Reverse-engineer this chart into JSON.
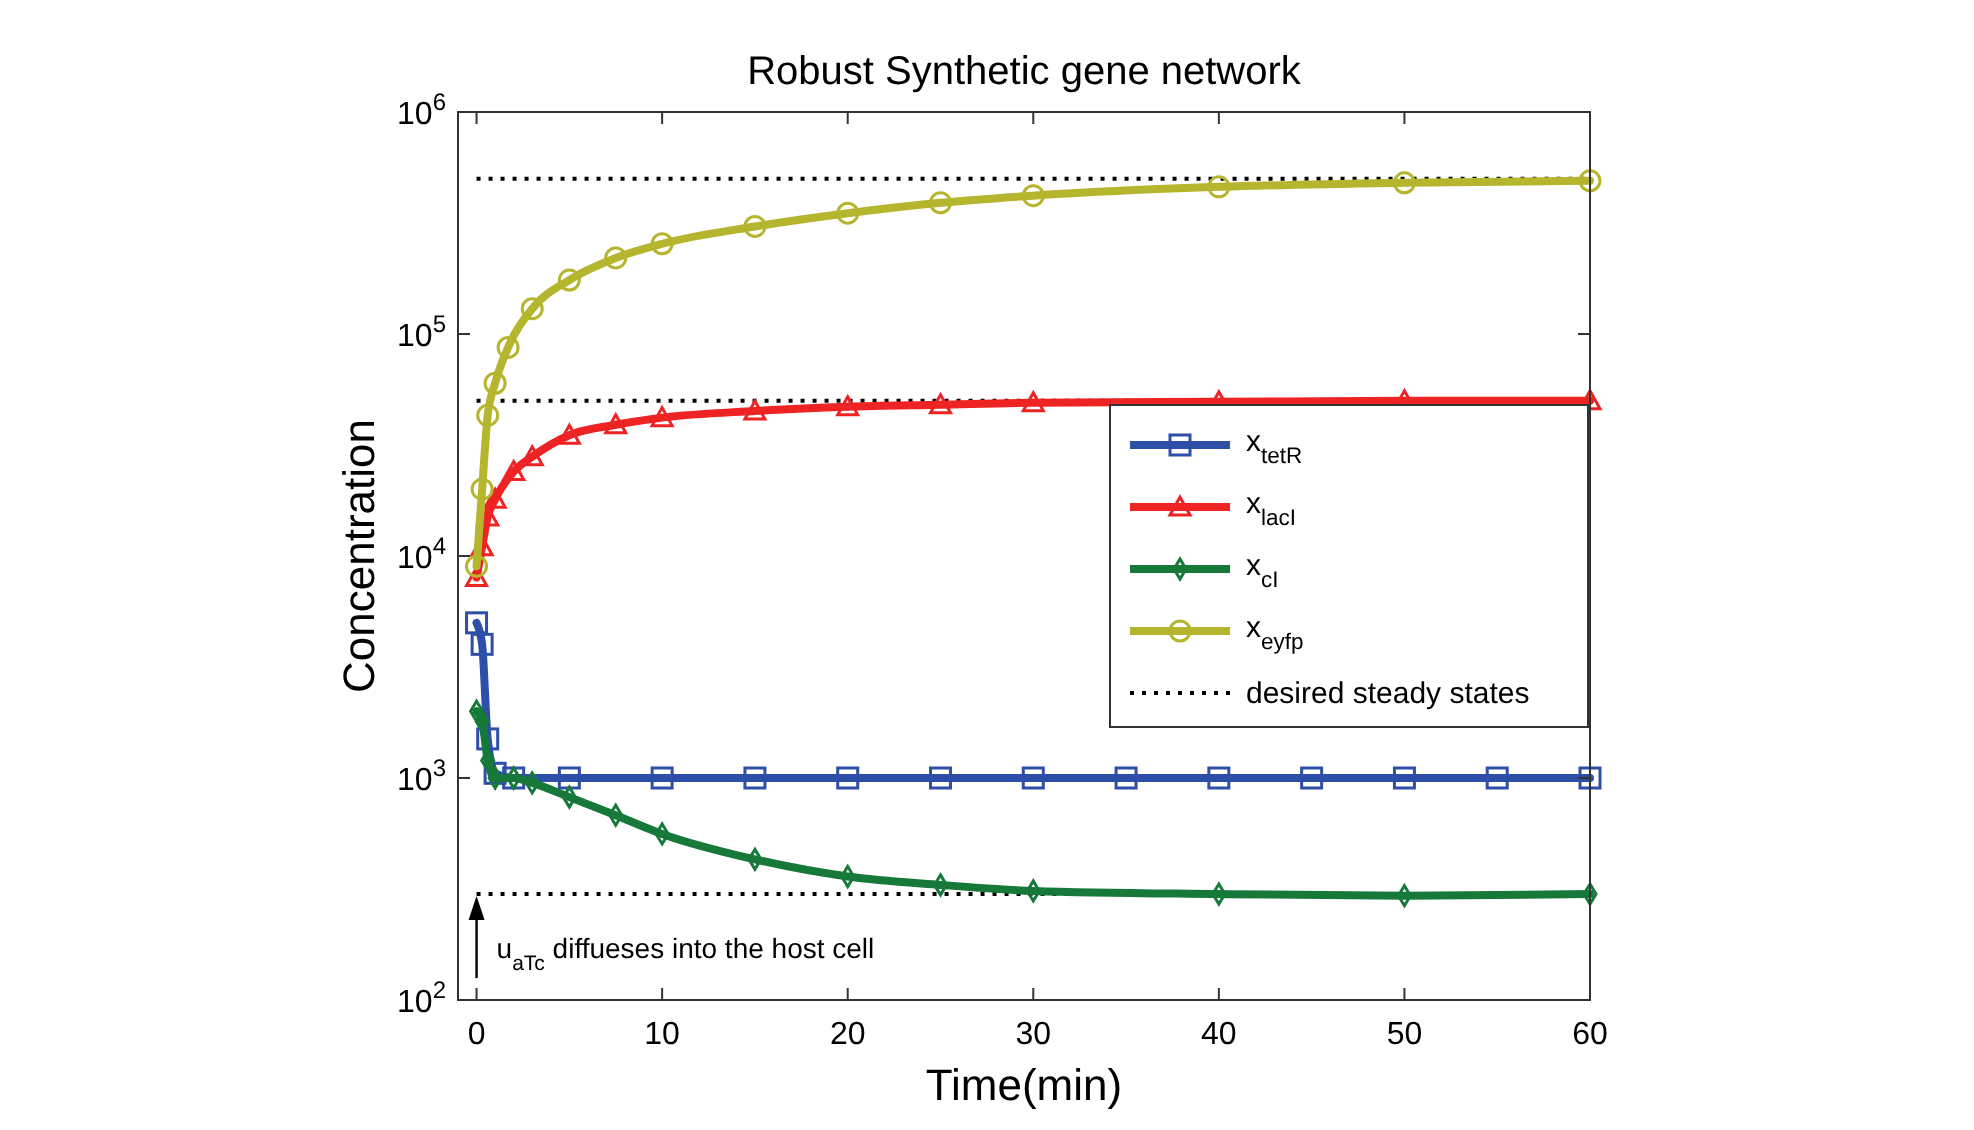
{
  "chart_data": {
    "type": "line",
    "title": "Robust Synthetic gene network",
    "xlabel": "Time(min)",
    "ylabel": "Concentration",
    "log": "y",
    "xlim": [
      -1,
      60
    ],
    "xticks": [
      0,
      10,
      20,
      30,
      40,
      50,
      60
    ],
    "ylim": [
      100,
      1000000
    ],
    "yticks": [
      {
        "value": 100,
        "label": "10$^{2}$"
      },
      {
        "value": 1000,
        "label": "10$^{3}$"
      },
      {
        "value": 10000,
        "label": "10$^{4}$"
      },
      {
        "value": 100000,
        "label": "10$^{5}$"
      },
      {
        "value": 1000000,
        "label": "10$^{6}$"
      }
    ],
    "grid": false,
    "legend": "right",
    "line_style": "solid",
    "series": [
      {
        "name": "x$_{tetR}$",
        "color": "#2d4fa8",
        "marker": "square",
        "x": [
          0,
          0.3,
          0.6,
          1,
          2,
          5,
          10,
          15,
          20,
          25,
          30,
          35,
          40,
          45,
          50,
          55,
          60
        ],
        "values": [
          5000,
          4000,
          1500,
          1050,
          1000,
          1000,
          1000,
          1000,
          1000,
          1000,
          1000,
          1000,
          1000,
          1000,
          1000,
          1000,
          1000
        ]
      },
      {
        "name": "x$_{lacI}$",
        "color": "#ee2324",
        "marker": "triangle",
        "x": [
          0,
          0.3,
          0.6,
          1,
          2,
          3,
          5,
          7.5,
          10,
          15,
          20,
          25,
          30,
          40,
          50,
          60
        ],
        "values": [
          8000,
          11000,
          15000,
          18000,
          24000,
          28000,
          35000,
          39000,
          42000,
          45000,
          47000,
          48000,
          49000,
          49500,
          50000,
          50000
        ]
      },
      {
        "name": "x$_{cI}$",
        "color": "#16793a",
        "marker": "diamond",
        "x": [
          0,
          0.3,
          0.6,
          1,
          2,
          3,
          5,
          7.5,
          10,
          15,
          20,
          25,
          30,
          40,
          50,
          60
        ],
        "values": [
          2000,
          1800,
          1200,
          1000,
          1000,
          950,
          820,
          680,
          560,
          430,
          360,
          330,
          310,
          300,
          295,
          300
        ]
      },
      {
        "name": "x$_{eyfp}$",
        "color": "#b5b52e",
        "marker": "circle",
        "x": [
          0,
          0.3,
          0.6,
          1,
          1.7,
          3,
          5,
          7.5,
          10,
          15,
          20,
          25,
          30,
          40,
          50,
          60
        ],
        "values": [
          9000,
          20000,
          43000,
          60000,
          87000,
          130000,
          175000,
          220000,
          255000,
          305000,
          350000,
          390000,
          420000,
          460000,
          480000,
          490000
        ]
      }
    ],
    "ref_lines": [
      {
        "axis": "y",
        "value": 500000,
        "label": "desired steady states",
        "color": "#000000",
        "line_style": "dotted"
      },
      {
        "axis": "y",
        "value": 50000,
        "color": "#000000",
        "line_style": "dotted"
      },
      {
        "axis": "y",
        "value": 300,
        "color": "#000000",
        "line_style": "dotted"
      }
    ],
    "annotations": [
      {
        "text": "u$_{aTc}$ diffueses into the host cell",
        "x": 0,
        "y": 300
      }
    ]
  }
}
